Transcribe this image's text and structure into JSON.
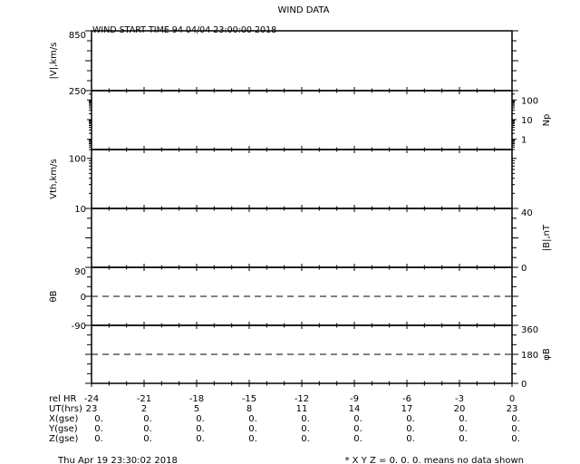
{
  "chart_data": {
    "type": "line",
    "title": "WIND DATA",
    "subtitle": "WIND START TIME  94 04/04 23:00:00 2018",
    "x": {
      "label": "rel HR",
      "range": [
        -24,
        0
      ],
      "ticks": [
        -24,
        -21,
        -18,
        -15,
        -12,
        -9,
        -6,
        -3,
        0
      ]
    },
    "panels": [
      {
        "ylabel": "|V|,km/s",
        "side": "left",
        "scale": "linear",
        "range": [
          250,
          850
        ],
        "ticks": [
          "850",
          "250"
        ],
        "tick_values": [
          850,
          250
        ],
        "series": []
      },
      {
        "ylabel": "Np",
        "side": "right",
        "scale": "log",
        "range": [
          0.3,
          300
        ],
        "ticks": [
          "100",
          "10",
          "1"
        ],
        "tick_values": [
          100,
          10,
          1
        ],
        "series": []
      },
      {
        "ylabel": "Vth,km/s",
        "side": "left",
        "scale": "log",
        "range": [
          10,
          150
        ],
        "ticks": [
          "100",
          "10"
        ],
        "tick_values": [
          100,
          10
        ],
        "series": []
      },
      {
        "ylabel": "|B|,nT",
        "side": "right",
        "scale": "linear",
        "range": [
          0,
          40
        ],
        "ticks": [
          "40",
          "0"
        ],
        "tick_values": [
          40,
          0
        ],
        "series": []
      },
      {
        "ylabel": "θB",
        "side": "left",
        "scale": "linear",
        "range": [
          -90,
          90
        ],
        "ticks": [
          "90",
          "0",
          "-90"
        ],
        "tick_values": [
          90,
          0,
          -90
        ],
        "reference_line": 0,
        "series": []
      },
      {
        "ylabel": "φB",
        "side": "right",
        "scale": "linear",
        "range": [
          0,
          360
        ],
        "ticks": [
          "360",
          "180",
          "0"
        ],
        "tick_values": [
          360,
          180,
          0
        ],
        "reference_line": 180,
        "series": []
      }
    ],
    "table": {
      "row_labels": [
        "rel HR",
        "UT(hrs)",
        "X(gse)",
        "Y(gse)",
        "Z(gse)"
      ],
      "rows": [
        [
          "-24",
          "-21",
          "-18",
          "-15",
          "-12",
          "-9",
          "-6",
          "-3",
          "0"
        ],
        [
          "23",
          "2",
          "5",
          "8",
          "11",
          "14",
          "17",
          "20",
          "23"
        ],
        [
          "0.",
          "0.",
          "0.",
          "0.",
          "0.",
          "0.",
          "0.",
          "0.",
          "0."
        ],
        [
          "0.",
          "0.",
          "0.",
          "0.",
          "0.",
          "0.",
          "0.",
          "0.",
          "0."
        ],
        [
          "0.",
          "0.",
          "0.",
          "0.",
          "0.",
          "0.",
          "0.",
          "0.",
          "0."
        ]
      ]
    },
    "footer_left": "Thu Apr 19 23:30:02 2018",
    "footer_right": "* X Y Z = 0. 0. 0. means no data shown"
  }
}
